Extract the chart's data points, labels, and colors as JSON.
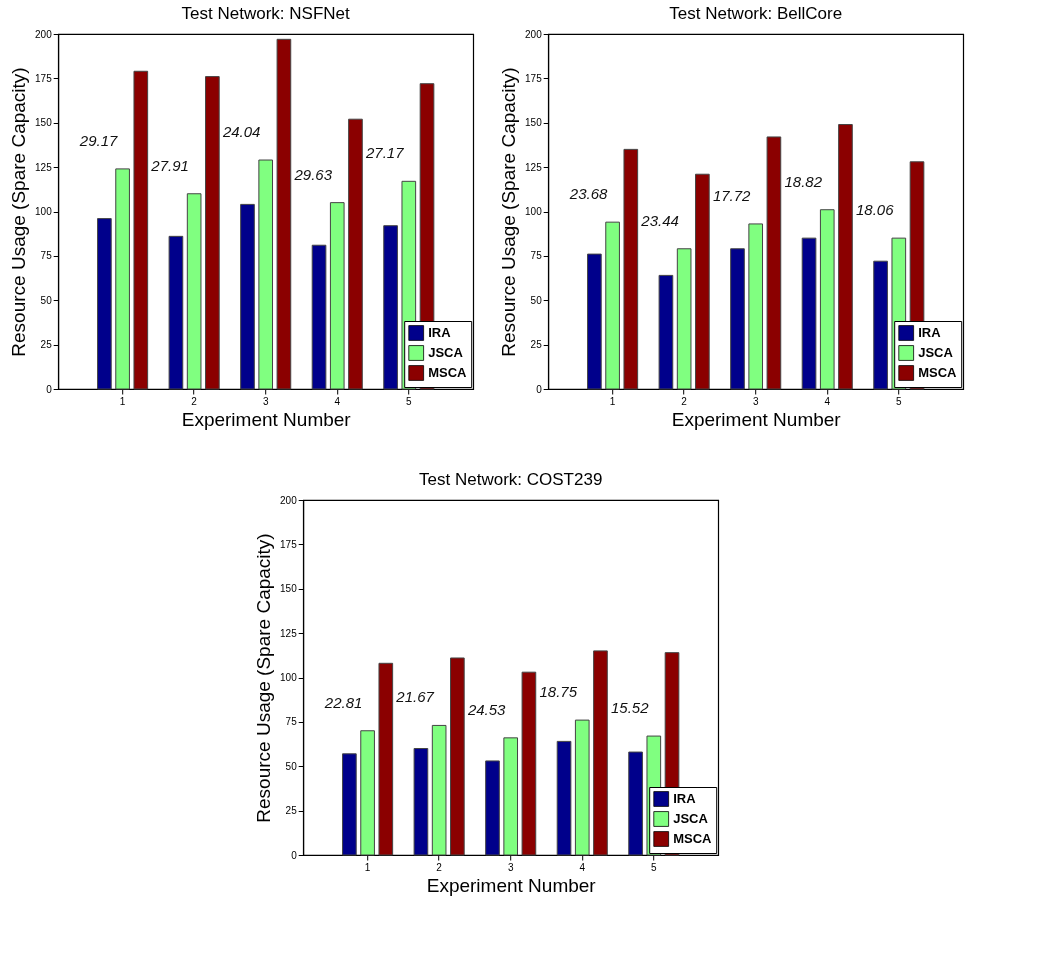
{
  "chart_data": [
    {
      "type": "bar",
      "title": "Test Network: NSFNet",
      "xlabel": "Experiment Number",
      "ylabel": "Resource Usage (Spare Capacity)",
      "categories": [
        "1",
        "2",
        "3",
        "4",
        "5"
      ],
      "ylim": [
        0,
        200
      ],
      "yticks": [
        0,
        25,
        50,
        75,
        100,
        125,
        150,
        175,
        200
      ],
      "grid": false,
      "legend": "bottom right",
      "series": [
        {
          "name": "IRA",
          "color": "#00008b",
          "values": [
            96,
            86,
            104,
            81,
            92
          ]
        },
        {
          "name": "JSCA",
          "color": "#80ff80",
          "values": [
            124,
            110,
            129,
            105,
            117
          ]
        },
        {
          "name": "MSCA",
          "color": "#8b0000",
          "values": [
            179,
            176,
            197,
            152,
            172
          ]
        }
      ],
      "annotations": [
        "29.17",
        "27.91",
        "24.04",
        "29.63",
        "27.17"
      ]
    },
    {
      "type": "bar",
      "title": "Test Network: BellCore",
      "xlabel": "Experiment Number",
      "ylabel": "Resource Usage (Spare Capacity)",
      "categories": [
        "1",
        "2",
        "3",
        "4",
        "5"
      ],
      "ylim": [
        0,
        200
      ],
      "yticks": [
        0,
        25,
        50,
        75,
        100,
        125,
        150,
        175,
        200
      ],
      "grid": false,
      "legend": "bottom right",
      "series": [
        {
          "name": "IRA",
          "color": "#00008b",
          "values": [
            76,
            64,
            79,
            85,
            72
          ]
        },
        {
          "name": "JSCA",
          "color": "#80ff80",
          "values": [
            94,
            79,
            93,
            101,
            85
          ]
        },
        {
          "name": "MSCA",
          "color": "#8b0000",
          "values": [
            135,
            121,
            142,
            149,
            128
          ]
        }
      ],
      "annotations": [
        "23.68",
        "23.44",
        "17.72",
        "18.82",
        "18.06"
      ]
    },
    {
      "type": "bar",
      "title": "Test Network: COST239",
      "xlabel": "Experiment Number",
      "ylabel": "Resource Usage (Spare Capacity)",
      "categories": [
        "1",
        "2",
        "3",
        "4",
        "5"
      ],
      "ylim": [
        0,
        200
      ],
      "yticks": [
        0,
        25,
        50,
        75,
        100,
        125,
        150,
        175,
        200
      ],
      "grid": false,
      "legend": "bottom right",
      "series": [
        {
          "name": "IRA",
          "color": "#00008b",
          "values": [
            57,
            60,
            53,
            64,
            58
          ]
        },
        {
          "name": "JSCA",
          "color": "#80ff80",
          "values": [
            70,
            73,
            66,
            76,
            67
          ]
        },
        {
          "name": "MSCA",
          "color": "#8b0000",
          "values": [
            108,
            111,
            103,
            115,
            114
          ]
        }
      ],
      "annotations": [
        "22.81",
        "21.67",
        "24.53",
        "18.75",
        "15.52"
      ]
    }
  ]
}
